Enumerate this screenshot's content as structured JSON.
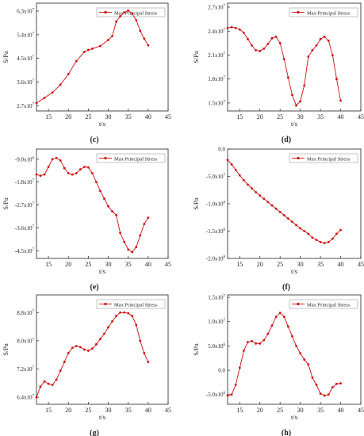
{
  "figure": {
    "legend_label": "Max Principal Stress",
    "series_color": "#cc1111",
    "panels": [
      {
        "letter": "(c)"
      },
      {
        "letter": "(d)"
      },
      {
        "letter": "(e)"
      },
      {
        "letter": "(f)"
      },
      {
        "letter": "(g)"
      },
      {
        "letter": "(h)"
      }
    ]
  },
  "chart_data": [
    {
      "type": "line",
      "panel": "(c)",
      "xlabel": "t/s",
      "ylabel": "S/Pa",
      "xlim": [
        12,
        45
      ],
      "ylim": [
        25000000.0,
        66000000.0
      ],
      "x_ticks": [
        15,
        20,
        25,
        30,
        35,
        40,
        45
      ],
      "y_ticks": [
        27000000.0,
        36000000.0,
        45000000.0,
        54000000.0,
        63000000.0
      ],
      "y_tick_labels": [
        "2.7x10^7",
        "3.6x10^7",
        "4.5x10^7",
        "5.4x10^7",
        "6.3x10^7"
      ],
      "legend": "top-right",
      "series": [
        {
          "name": "Max Principal Stress",
          "x": [
            12,
            14,
            16,
            18,
            20,
            22,
            24,
            25,
            26,
            28,
            30,
            31,
            32,
            33,
            34,
            35,
            36,
            37,
            38,
            39,
            40
          ],
          "y": [
            28000000.0,
            30000000.0,
            32000000.0,
            35000000.0,
            39000000.0,
            44000000.0,
            47500000.0,
            48200000.0,
            48700000.0,
            49700000.0,
            52000000.0,
            53500000.0,
            59000000.0,
            61000000.0,
            62500000.0,
            63200000.0,
            62000000.0,
            59500000.0,
            55500000.0,
            52500000.0,
            50000000.0
          ]
        }
      ]
    },
    {
      "type": "line",
      "panel": "(d)",
      "xlabel": "t/s",
      "ylabel": "S/Pa",
      "xlim": [
        12,
        45
      ],
      "ylim": [
        14000000.0,
        27500000.0
      ],
      "x_ticks": [
        15,
        20,
        25,
        30,
        35,
        40,
        45
      ],
      "y_ticks": [
        15000000.0,
        18000000.0,
        21000000.0,
        24000000.0,
        27000000.0
      ],
      "y_tick_labels": [
        "1.5x10^7",
        "1.8x10^7",
        "2.1x10^7",
        "2.4x10^7",
        "2.7x10^7"
      ],
      "legend": "top-right",
      "series": [
        {
          "name": "Max Principal Stress",
          "x": [
            12,
            13,
            14,
            15,
            16,
            17,
            18,
            19,
            20,
            21,
            22,
            23,
            24,
            25,
            26,
            27,
            28,
            29,
            30,
            31,
            32,
            33,
            34,
            35,
            36,
            37,
            38,
            39,
            40
          ],
          "y": [
            24400000.0,
            24500000.0,
            24400000.0,
            24200000.0,
            23800000.0,
            23000000.0,
            22200000.0,
            21600000.0,
            21500000.0,
            21800000.0,
            22400000.0,
            23100000.0,
            23300000.0,
            22500000.0,
            20500000.0,
            18200000.0,
            16000000.0,
            14700000.0,
            15200000.0,
            17200000.0,
            20800000.0,
            21600000.0,
            22200000.0,
            23000000.0,
            23300000.0,
            22800000.0,
            21000000.0,
            18000000.0,
            15300000.0
          ]
        }
      ]
    },
    {
      "type": "line",
      "panel": "(e)",
      "xlabel": "t/s",
      "ylabel": "S/Pa",
      "xlim": [
        12,
        45
      ],
      "ylim": [
        -48000000.0,
        -5000000.0
      ],
      "x_ticks": [
        15,
        20,
        25,
        30,
        35,
        40,
        45
      ],
      "y_ticks": [
        -45000000.0,
        -36000000.0,
        -27000000.0,
        -18000000.0,
        -9000000.0
      ],
      "y_tick_labels": [
        "-4.5x10^7",
        "-3.6x10^7",
        "-2.7x10^7",
        "-1.8x10^7",
        "-9.0x10^6"
      ],
      "legend": "top-right",
      "series": [
        {
          "name": "Max Principal Stress",
          "x": [
            12,
            13,
            14,
            15,
            16,
            17,
            18,
            19,
            20,
            21,
            22,
            23,
            24,
            25,
            26,
            27,
            28,
            29,
            30,
            31,
            32,
            33,
            34,
            35,
            36,
            37,
            38,
            39,
            40
          ],
          "y": [
            -15000000.0,
            -15500000.0,
            -15000000.0,
            -12000000.0,
            -9000000.0,
            -8500000.0,
            -9500000.0,
            -12500000.0,
            -14500000.0,
            -15000000.0,
            -14500000.0,
            -13000000.0,
            -12000000.0,
            -12200000.0,
            -14500000.0,
            -18000000.0,
            -21500000.0,
            -24500000.0,
            -27500000.0,
            -29500000.0,
            -31000000.0,
            -38000000.0,
            -41500000.0,
            -44500000.0,
            -45500000.0,
            -43500000.0,
            -39000000.0,
            -34500000.0,
            -32000000.0
          ]
        }
      ]
    },
    {
      "type": "line",
      "panel": "(f)",
      "xlabel": "t/s",
      "ylabel": "S/Pa",
      "xlim": [
        12,
        45
      ],
      "ylim": [
        -200000000.0,
        0
      ],
      "x_ticks": [
        15,
        20,
        25,
        30,
        35,
        40,
        45
      ],
      "y_ticks": [
        -200000000.0,
        -150000000.0,
        -100000000.0,
        -50000000.0,
        0
      ],
      "y_tick_labels": [
        "-2.0x10^8",
        "-1.5x10^8",
        "-1.0x10^8",
        "-5.0x10^7",
        "0.0"
      ],
      "legend": "top-right",
      "series": [
        {
          "name": "Max Principal Stress",
          "x": [
            12,
            13,
            14,
            15,
            16,
            17,
            18,
            19,
            20,
            21,
            22,
            23,
            24,
            25,
            26,
            27,
            28,
            29,
            30,
            31,
            32,
            33,
            34,
            35,
            36,
            37,
            38,
            39,
            40
          ],
          "y": [
            -20000000.0,
            -28000000.0,
            -38000000.0,
            -48000000.0,
            -57000000.0,
            -65000000.0,
            -72000000.0,
            -79000000.0,
            -85000000.0,
            -91000000.0,
            -97000000.0,
            -103000000.0,
            -109000000.0,
            -115000000.0,
            -121000000.0,
            -127000000.0,
            -133000000.0,
            -139000000.0,
            -145000000.0,
            -150000000.0,
            -155000000.0,
            -162000000.0,
            -166000000.0,
            -170000000.0,
            -172000000.0,
            -170000000.0,
            -164000000.0,
            -155000000.0,
            -148000000.0
          ]
        }
      ]
    },
    {
      "type": "line",
      "panel": "(g)",
      "xlabel": "t/s",
      "ylabel": "S/Pa",
      "xlim": [
        12,
        45
      ],
      "ylim": [
        62000000.0,
        93000000.0
      ],
      "x_ticks": [
        15,
        20,
        25,
        30,
        35,
        40,
        45
      ],
      "y_ticks": [
        64000000.0,
        72000000.0,
        80000000.0,
        88000000.0
      ],
      "y_tick_labels": [
        "6.4x10^7",
        "7.2x10^7",
        "8.0x10^7",
        "8.8x10^7"
      ],
      "legend": "top-right",
      "series": [
        {
          "name": "Max Principal Stress",
          "x": [
            12,
            13,
            14,
            15,
            16,
            17,
            18,
            19,
            20,
            21,
            22,
            23,
            24,
            25,
            26,
            27,
            28,
            29,
            30,
            31,
            32,
            33,
            34,
            35,
            36,
            37,
            38,
            39,
            40
          ],
          "y": [
            64000000.0,
            67000000.0,
            68500000.0,
            67800000.0,
            67500000.0,
            69000000.0,
            71500000.0,
            74000000.0,
            76500000.0,
            78000000.0,
            78500000.0,
            78200000.0,
            77500000.0,
            77200000.0,
            77800000.0,
            79000000.0,
            80500000.0,
            82000000.0,
            83800000.0,
            85500000.0,
            87000000.0,
            88000000.0,
            88000000.0,
            87800000.0,
            87000000.0,
            84500000.0,
            80000000.0,
            76500000.0,
            74000000.0
          ]
        }
      ]
    },
    {
      "type": "line",
      "panel": "(h)",
      "xlabel": "t/s",
      "ylabel": "S/Pa",
      "xlim": [
        12,
        45
      ],
      "ylim": [
        -7000000.0,
        15500000.0
      ],
      "x_ticks": [
        15,
        20,
        25,
        30,
        35,
        40,
        45
      ],
      "y_ticks": [
        -5000000.0,
        0,
        5000000.0,
        10000000.0,
        15000000.0
      ],
      "y_tick_labels": [
        "-5.0x10^6",
        "0.0",
        "5.0x10^6",
        "1.0x10^7",
        "1.5x10^7"
      ],
      "legend": "top-right",
      "series": [
        {
          "name": "Max Principal Stress",
          "x": [
            12,
            13,
            14,
            15,
            16,
            17,
            18,
            19,
            20,
            21,
            22,
            23,
            24,
            25,
            26,
            27,
            28,
            29,
            30,
            31,
            32,
            33,
            34,
            35,
            36,
            37,
            38,
            39,
            40
          ],
          "y": [
            -5200000.0,
            -5000000.0,
            -3000000.0,
            500000.0,
            4000000.0,
            5800000.0,
            6000000.0,
            5500000.0,
            5500000.0,
            6200000.0,
            7500000.0,
            9200000.0,
            11000000.0,
            11800000.0,
            11000000.0,
            9000000.0,
            7000000.0,
            5000000.0,
            3500000.0,
            2200000.0,
            1200000.0,
            -1500000.0,
            -3000000.0,
            -4800000.0,
            -5200000.0,
            -5000000.0,
            -3500000.0,
            -2800000.0,
            -2700000.0
          ]
        }
      ]
    }
  ]
}
